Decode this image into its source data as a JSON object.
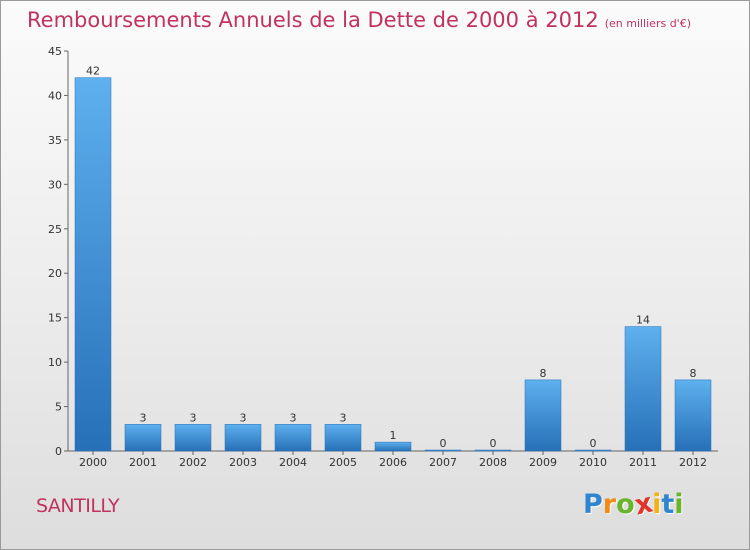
{
  "title": "Remboursements Annuels de la Dette de 2000 à 2012",
  "title_unit": "(en milliers d'€)",
  "commune": "SANTILLY",
  "logo": {
    "letters": [
      "P",
      "r",
      "o",
      "x",
      "i",
      "t",
      "i"
    ],
    "colors": [
      "#2f86cf",
      "#f28a16",
      "#69b52a",
      "#e0342b",
      "#f2b214",
      "#2f86cf",
      "#69b52a"
    ]
  },
  "colors": {
    "title": "#c2325e",
    "bar": "#3d8fd6",
    "bar_light": "#5eb0ee",
    "bar_dark": "#2670b8"
  },
  "chart_data": {
    "type": "bar",
    "categories": [
      "2000",
      "2001",
      "2002",
      "2003",
      "2004",
      "2005",
      "2006",
      "2007",
      "2008",
      "2009",
      "2010",
      "2011",
      "2012"
    ],
    "values": [
      42,
      3,
      3,
      3,
      3,
      3,
      1,
      0,
      0,
      8,
      0,
      14,
      8
    ],
    "labels": [
      "42",
      "3",
      "3",
      "3",
      "3",
      "3",
      "1",
      "0",
      "0",
      "8",
      "0",
      "14",
      "8"
    ],
    "ylim": [
      0,
      45
    ],
    "yticks": [
      0,
      5,
      10,
      15,
      20,
      25,
      30,
      35,
      40,
      45
    ],
    "grid": false,
    "xlabel": "",
    "ylabel": ""
  }
}
